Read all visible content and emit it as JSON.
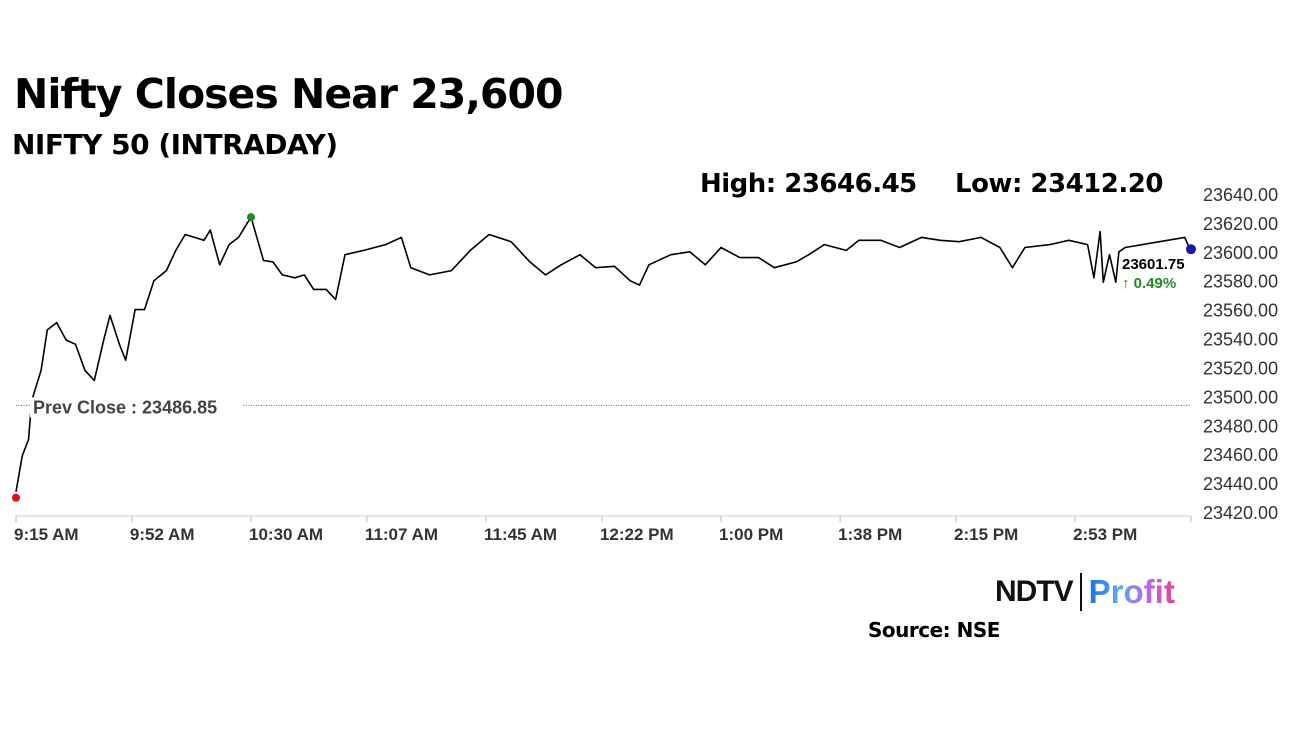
{
  "header": {
    "title": "Nifty Closes Near 23,600",
    "subtitle": "NIFTY 50 (INTRADAY)",
    "high": "High: 23646.45",
    "low": "Low: 23412.20"
  },
  "footer": {
    "source": "Source: NSE",
    "logo_left": "NDTV",
    "logo_right": "Profit"
  },
  "chart_data": {
    "type": "line",
    "title": "NIFTY 50 (INTRADAY)",
    "ylim": [
      23420,
      23640
    ],
    "yticks": [
      "23640.00",
      "23620.00",
      "23600.00",
      "23580.00",
      "23560.00",
      "23540.00",
      "23520.00",
      "23500.00",
      "23480.00",
      "23460.00",
      "23440.00",
      "23420.00"
    ],
    "xticks": [
      "9:15 AM",
      "9:52 AM",
      "10:30 AM",
      "11:07 AM",
      "11:45 AM",
      "12:22 PM",
      "1:00 PM",
      "1:38 PM",
      "2:15 PM",
      "2:53 PM"
    ],
    "xtick_times": [
      "09:15",
      "09:52",
      "10:30",
      "11:07",
      "11:45",
      "12:22",
      "13:00",
      "13:38",
      "14:15",
      "14:53"
    ],
    "xlim": [
      "09:15",
      "15:30"
    ],
    "prev_close": {
      "label": "Prev Close : 23486.85",
      "value": 23486.85,
      "color": "#c0392b"
    },
    "last": {
      "label": "23601.75",
      "change": "↑ 0.49%",
      "value": 23601.75,
      "change_color": "#1e8c1e",
      "marker_color": "#1a1aa8"
    },
    "high_marker": {
      "time": "10:30",
      "color": "#1e8c1e"
    },
    "low_marker": {
      "time": "09:15",
      "color": "#e01010"
    },
    "series": [
      {
        "points": [
          [
            "09:15",
            23434
          ],
          [
            "09:17",
            23459
          ],
          [
            "09:19",
            23470
          ],
          [
            "09:20",
            23497
          ],
          [
            "09:23",
            23518
          ],
          [
            "09:25",
            23546
          ],
          [
            "09:28",
            23551
          ],
          [
            "09:31",
            23539
          ],
          [
            "09:34",
            23536
          ],
          [
            "09:37",
            23518
          ],
          [
            "09:40",
            23511
          ],
          [
            "09:43",
            23539
          ],
          [
            "09:45",
            23556
          ],
          [
            "09:48",
            23536
          ],
          [
            "09:50",
            23525
          ],
          [
            "09:53",
            23560
          ],
          [
            "09:56",
            23560
          ],
          [
            "09:59",
            23580
          ],
          [
            "10:03",
            23587
          ],
          [
            "10:06",
            23601
          ],
          [
            "10:09",
            23612
          ],
          [
            "10:12",
            23610
          ],
          [
            "10:15",
            23608
          ],
          [
            "10:17",
            23615
          ],
          [
            "10:20",
            23591
          ],
          [
            "10:23",
            23605
          ],
          [
            "10:26",
            23610
          ],
          [
            "10:30",
            23624
          ],
          [
            "10:34",
            23594
          ],
          [
            "10:37",
            23593
          ],
          [
            "10:40",
            23584
          ],
          [
            "10:44",
            23582
          ],
          [
            "10:47",
            23584
          ],
          [
            "10:50",
            23574
          ],
          [
            "10:54",
            23574
          ],
          [
            "10:57",
            23567
          ],
          [
            "11:00",
            23598
          ],
          [
            "11:06",
            23601
          ],
          [
            "11:13",
            23605
          ],
          [
            "11:18",
            23610
          ],
          [
            "11:21",
            23589
          ],
          [
            "11:27",
            23584
          ],
          [
            "11:34",
            23587
          ],
          [
            "11:40",
            23601
          ],
          [
            "11:46",
            23612
          ],
          [
            "11:53",
            23607
          ],
          [
            "11:59",
            23593
          ],
          [
            "12:04",
            23584
          ],
          [
            "12:09",
            23591
          ],
          [
            "12:15",
            23598
          ],
          [
            "12:20",
            23589
          ],
          [
            "12:26",
            23590
          ],
          [
            "12:31",
            23580
          ],
          [
            "12:34",
            23577
          ],
          [
            "12:37",
            23591
          ],
          [
            "12:44",
            23598
          ],
          [
            "12:50",
            23600
          ],
          [
            "12:55",
            23591
          ],
          [
            "13:00",
            23603
          ],
          [
            "13:06",
            23596
          ],
          [
            "13:12",
            23596
          ],
          [
            "13:17",
            23589
          ],
          [
            "13:24",
            23593
          ],
          [
            "13:28",
            23598
          ],
          [
            "13:33",
            23605
          ],
          [
            "13:40",
            23601
          ],
          [
            "13:44",
            23608
          ],
          [
            "13:51",
            23608
          ],
          [
            "13:57",
            23603
          ],
          [
            "14:04",
            23610
          ],
          [
            "14:10",
            23608
          ],
          [
            "14:16",
            23607
          ],
          [
            "14:23",
            23610
          ],
          [
            "14:29",
            23603
          ],
          [
            "14:33",
            23589
          ],
          [
            "14:37",
            23603
          ],
          [
            "14:45",
            23605
          ],
          [
            "14:51",
            23608
          ],
          [
            "14:57",
            23605
          ],
          [
            "14:59",
            23582
          ],
          [
            "15:01",
            23614
          ],
          [
            "15:02",
            23579
          ],
          [
            "15:04",
            23598
          ],
          [
            "15:06",
            23579
          ],
          [
            "15:07",
            23600
          ],
          [
            "15:09",
            23603
          ],
          [
            "15:28",
            23610
          ],
          [
            "15:29",
            23605
          ],
          [
            "15:30",
            23601.75
          ]
        ]
      }
    ]
  }
}
